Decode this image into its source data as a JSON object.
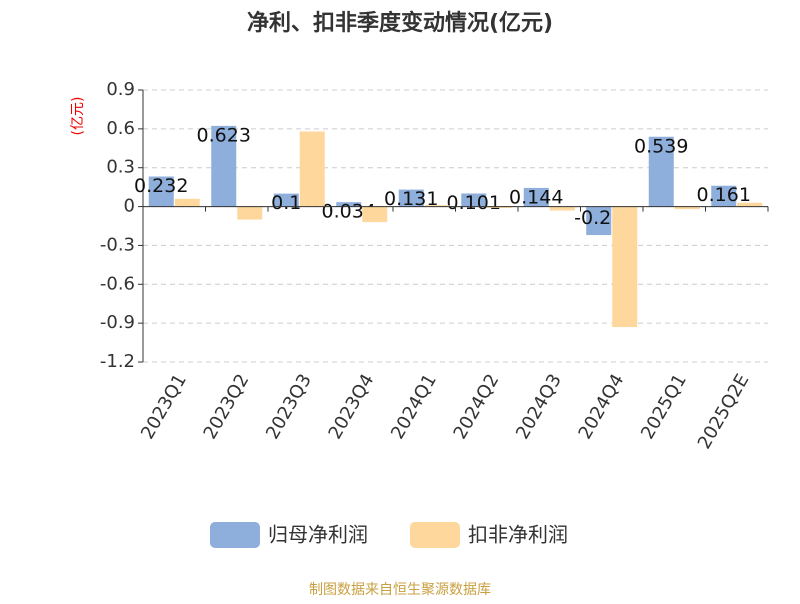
{
  "chart_data": {
    "type": "bar",
    "title": "净利、扣非季度变动情况(亿元)",
    "y_label": "(亿元)",
    "source": "制图数据来自恒生聚源数据库",
    "categories": [
      "2023Q1",
      "2023Q2",
      "2023Q3",
      "2023Q4",
      "2024Q1",
      "2024Q2",
      "2024Q3",
      "2024Q4",
      "2025Q1",
      "2025Q2E"
    ],
    "series": [
      {
        "name": "归母净利润",
        "color": "#8eaedb",
        "values": [
          0.232,
          0.623,
          0.1,
          0.034,
          0.131,
          0.101,
          0.144,
          -0.22,
          0.539,
          0.161
        ]
      },
      {
        "name": "扣非净利润",
        "color": "#fdd79b",
        "values": [
          0.06,
          -0.1,
          0.58,
          -0.12,
          0.01,
          -0.01,
          -0.03,
          -0.93,
          -0.02,
          0.03
        ]
      }
    ],
    "ylim": [
      -1.2,
      0.9
    ],
    "yticks": [
      0.9,
      0.6,
      0.3,
      0,
      -0.3,
      -0.6,
      -0.9,
      -1.2
    ],
    "grid": true
  }
}
